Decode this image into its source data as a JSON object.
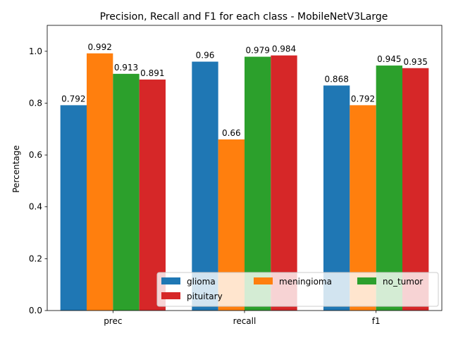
{
  "chart_data": {
    "type": "bar",
    "title": "Precision, Recall and F1 for each class - MobileNetV3Large",
    "xlabel": "",
    "ylabel": "Percentage",
    "categories": [
      "prec",
      "recall",
      "f1"
    ],
    "series": [
      {
        "name": "glioma",
        "color": "#1f77b4",
        "values": [
          0.792,
          0.96,
          0.868
        ],
        "labels": [
          "0.792",
          "0.96",
          "0.868"
        ]
      },
      {
        "name": "meningioma",
        "color": "#ff7f0e",
        "values": [
          0.992,
          0.66,
          0.792
        ],
        "labels": [
          "0.992",
          "0.66",
          "0.792"
        ]
      },
      {
        "name": "no_tumor",
        "color": "#2ca02c",
        "values": [
          0.913,
          0.979,
          0.945
        ],
        "labels": [
          "0.913",
          "0.979",
          "0.945"
        ]
      },
      {
        "name": "pituitary",
        "color": "#d62728",
        "values": [
          0.891,
          0.984,
          0.935
        ],
        "labels": [
          "0.891",
          "0.984",
          "0.935"
        ]
      }
    ],
    "ylim": [
      0,
      1.1
    ],
    "yticks": [
      "0.0",
      "0.2",
      "0.4",
      "0.6",
      "0.8",
      "1.0"
    ],
    "grid": false,
    "legend": {
      "placement": "lower-right",
      "columns": 3
    }
  }
}
